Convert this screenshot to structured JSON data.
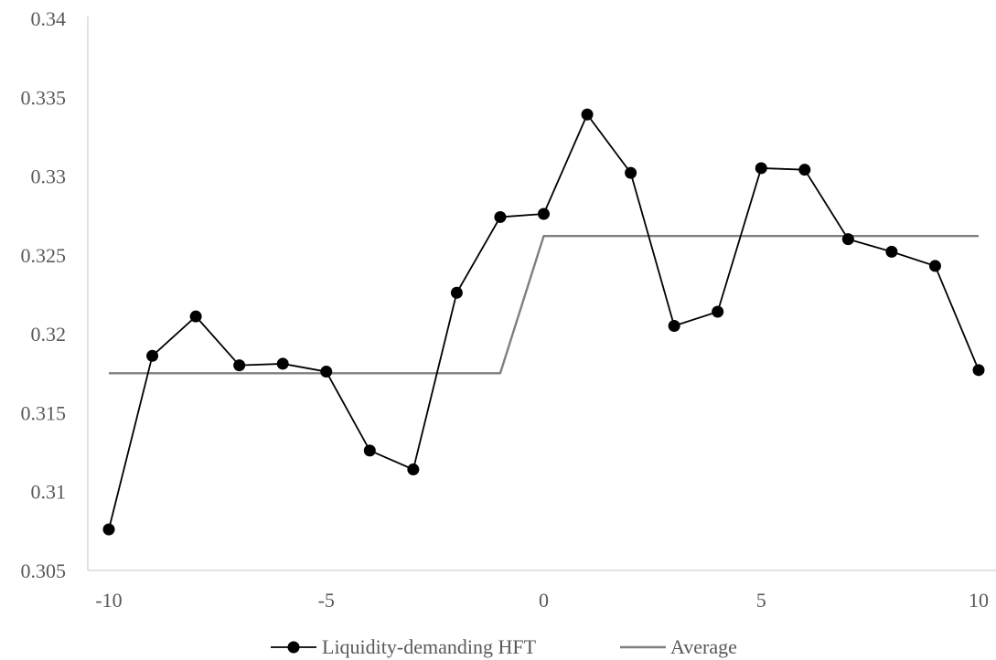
{
  "chart_data": {
    "type": "line",
    "x": [
      -10,
      -9,
      -8,
      -7,
      -6,
      -5,
      -4,
      -3,
      -2,
      -1,
      0,
      1,
      2,
      3,
      4,
      5,
      6,
      7,
      8,
      9,
      10
    ],
    "series": [
      {
        "name": "Liquidity-demanding HFT",
        "marker": "circle",
        "color": "#000000",
        "values": [
          0.3076,
          0.3186,
          0.3211,
          0.318,
          0.3181,
          0.3176,
          0.3126,
          0.3114,
          0.3226,
          0.3274,
          0.3276,
          0.3339,
          0.3302,
          0.3205,
          0.3214,
          0.3305,
          0.3304,
          0.326,
          0.3252,
          0.3243,
          0.3177
        ]
      },
      {
        "name": "Average",
        "marker": "none",
        "color": "#7f7f7f",
        "values": [
          0.3175,
          0.3175,
          0.3175,
          0.3175,
          0.3175,
          0.3175,
          0.3175,
          0.3175,
          0.3175,
          0.3175,
          0.3262,
          0.3262,
          0.3262,
          0.3262,
          0.3262,
          0.3262,
          0.3262,
          0.3262,
          0.3262,
          0.3262,
          0.3262
        ]
      }
    ],
    "xlim": [
      -10,
      10
    ],
    "ylim": [
      0.305,
      0.34
    ],
    "x_ticks": [
      -10,
      -5,
      0,
      5,
      10
    ],
    "x_tick_labels": [
      "-10",
      "-5",
      "0",
      "5",
      "10"
    ],
    "y_ticks": [
      0.305,
      0.31,
      0.315,
      0.32,
      0.325,
      0.33,
      0.335,
      0.34
    ],
    "y_tick_labels": [
      "0.305",
      "0.31",
      "0.315",
      "0.32",
      "0.325",
      "0.33",
      "0.335",
      "0.34"
    ],
    "title": "",
    "xlabel": "",
    "ylabel": "",
    "grid": false,
    "legend_position": "bottom"
  }
}
